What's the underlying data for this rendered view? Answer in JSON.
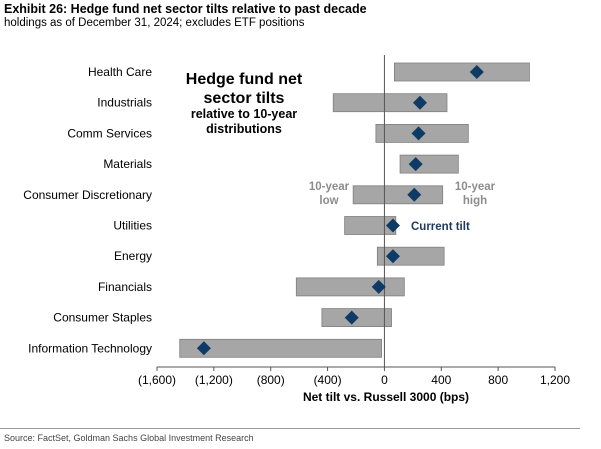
{
  "header": {
    "title": "Exhibit 26: Hedge fund net sector tilts relative to past decade",
    "subtitle": "holdings as of December 31, 2024; excludes ETF positions"
  },
  "footer": {
    "source": "Source: FactSet, Goldman Sachs Global Investment Research"
  },
  "chart_data": {
    "type": "bar",
    "orientation": "horizontal-range-with-markers",
    "categories": [
      "Health Care",
      "Industrials",
      "Comm Services",
      "Materials",
      "Consumer Discretionary",
      "Utilities",
      "Energy",
      "Financials",
      "Consumer Staples",
      "Information Technology"
    ],
    "series": [
      {
        "name": "10-year low",
        "values": [
          70,
          -360,
          -60,
          110,
          -220,
          -280,
          -50,
          -620,
          -440,
          -1440
        ]
      },
      {
        "name": "10-year high",
        "values": [
          1020,
          440,
          590,
          520,
          410,
          80,
          420,
          140,
          50,
          -20
        ]
      },
      {
        "name": "Current tilt",
        "values": [
          650,
          250,
          240,
          220,
          210,
          60,
          60,
          -40,
          -230,
          -1270
        ]
      }
    ],
    "xlabel": "Net tilt vs. Russell 3000 (bps)",
    "xlim": [
      -1600,
      1200
    ],
    "xticks": [
      -1600,
      -1200,
      -800,
      -400,
      0,
      400,
      800,
      1200
    ],
    "xtick_labels": [
      "(1,600)",
      "(1,200)",
      "(800)",
      "(400)",
      "0",
      "400",
      "800",
      "1,200"
    ],
    "annotations": {
      "chart_title_lines": [
        "Hedge fund net",
        "sector tilts"
      ],
      "chart_subtitle_lines": [
        "relative to 10-year",
        "distributions"
      ],
      "low_label_lines": [
        "10-year",
        "low"
      ],
      "high_label_lines": [
        "10-year",
        "high"
      ],
      "current_label": "Current tilt"
    },
    "colors": {
      "range_bar": "#a6a6a6",
      "range_border": "#7f7f7f",
      "marker": "#0e3a66",
      "annotation_gray": "#8c8c8c",
      "current_label": "#1f3a60"
    },
    "grid": false
  }
}
